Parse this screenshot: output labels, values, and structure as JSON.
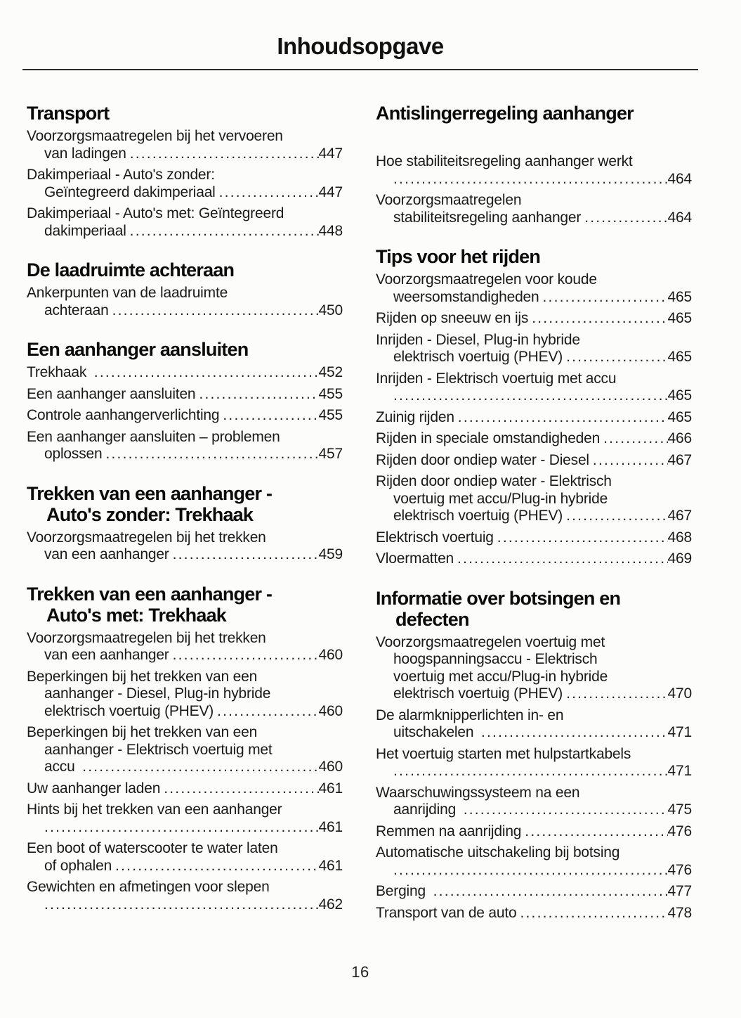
{
  "page": {
    "title": "Inhoudsopgave",
    "page_number": "16"
  },
  "colors": {
    "background": "#fcfcfb",
    "text": "#1a1a1a",
    "heading": "#0b0b0b"
  },
  "columns": [
    {
      "side": "left",
      "sections": [
        {
          "heading_lines": [
            "Transport"
          ],
          "entries": [
            {
              "lines": [
                "Voorzorgsmaatregelen bij het vervoeren",
                "van ladingen"
              ],
              "page": "447"
            },
            {
              "lines": [
                "Dakimperiaal - Auto's zonder:",
                "Geïntegreerd dakimperiaal"
              ],
              "page": "447"
            },
            {
              "lines": [
                "Dakimperiaal - Auto's met: Geïntegreerd",
                "dakimperiaal"
              ],
              "page": "448"
            }
          ]
        },
        {
          "heading_lines": [
            "De laadruimte achteraan"
          ],
          "entries": [
            {
              "lines": [
                "Ankerpunten van de laadruimte",
                "achteraan"
              ],
              "page": "450"
            }
          ]
        },
        {
          "heading_lines": [
            "Een aanhanger aansluiten"
          ],
          "entries": [
            {
              "lines": [
                "Trekhaak "
              ],
              "page": "452"
            },
            {
              "lines": [
                "Een aanhanger aansluiten"
              ],
              "page": "455"
            },
            {
              "lines": [
                "Controle aanhangerverlichting"
              ],
              "page": "455"
            },
            {
              "lines": [
                "Een aanhanger aansluiten – problemen",
                "oplossen"
              ],
              "page": "457"
            }
          ]
        },
        {
          "heading_lines": [
            "Trekken van een aanhanger -",
            "Auto's zonder: Trekhaak"
          ],
          "entries": [
            {
              "lines": [
                "Voorzorgsmaatregelen bij het trekken",
                "van een aanhanger"
              ],
              "page": "459"
            }
          ]
        },
        {
          "heading_lines": [
            "Trekken van een aanhanger -",
            "Auto's met: Trekhaak"
          ],
          "entries": [
            {
              "lines": [
                "Voorzorgsmaatregelen bij het trekken",
                "van een aanhanger"
              ],
              "page": "460"
            },
            {
              "lines": [
                "Beperkingen bij het trekken van een",
                "aanhanger - Diesel, Plug-in hybride",
                "elektrisch voertuig (PHEV)"
              ],
              "page": "460"
            },
            {
              "lines": [
                "Beperkingen bij het trekken van een",
                "aanhanger - Elektrisch voertuig met",
                "accu "
              ],
              "page": "460"
            },
            {
              "lines": [
                "Uw aanhanger laden"
              ],
              "page": "461"
            },
            {
              "lines": [
                "Hints bij het trekken van een aanhanger",
                ""
              ],
              "page": "461"
            },
            {
              "lines": [
                "Een boot of waterscooter te water laten",
                "of ophalen"
              ],
              "page": "461"
            },
            {
              "lines": [
                "Gewichten en afmetingen voor slepen",
                ""
              ],
              "page": "462"
            }
          ]
        }
      ]
    },
    {
      "side": "right",
      "sections": [
        {
          "heading_lines": [
            "Antislingerregeling aanhanger"
          ],
          "extra_gap_after_heading": true,
          "entries": [
            {
              "lines": [
                "Hoe stabiliteitsregeling aanhanger werkt",
                ""
              ],
              "page": "464"
            },
            {
              "lines": [
                "Voorzorgsmaatregelen",
                "stabiliteitsregeling aanhanger"
              ],
              "page": "464"
            }
          ]
        },
        {
          "heading_lines": [
            "Tips voor het rijden"
          ],
          "entries": [
            {
              "lines": [
                "Voorzorgsmaatregelen voor koude",
                "weersomstandigheden"
              ],
              "page": "465"
            },
            {
              "lines": [
                "Rijden op sneeuw en ijs"
              ],
              "page": "465"
            },
            {
              "lines": [
                "Inrijden - Diesel, Plug-in hybride",
                "elektrisch voertuig (PHEV)"
              ],
              "page": "465"
            },
            {
              "lines": [
                "Inrijden - Elektrisch voertuig met accu",
                ""
              ],
              "page": "465"
            },
            {
              "lines": [
                "Zuinig rijden"
              ],
              "page": "465"
            },
            {
              "lines": [
                "Rijden in speciale omstandigheden"
              ],
              "page": "466"
            },
            {
              "lines": [
                "Rijden door ondiep water - Diesel"
              ],
              "page": "467"
            },
            {
              "lines": [
                "Rijden door ondiep water - Elektrisch",
                "voertuig met accu/Plug-in hybride",
                "elektrisch voertuig (PHEV)"
              ],
              "page": "467"
            },
            {
              "lines": [
                "Elektrisch voertuig"
              ],
              "page": "468"
            },
            {
              "lines": [
                "Vloermatten"
              ],
              "page": "469"
            }
          ]
        },
        {
          "heading_lines": [
            "Informatie over botsingen en",
            "defecten"
          ],
          "entries": [
            {
              "lines": [
                "Voorzorgsmaatregelen voertuig met",
                "hoogspanningsaccu - Elektrisch",
                "voertuig met accu/Plug-in hybride",
                "elektrisch voertuig (PHEV)"
              ],
              "page": "470"
            },
            {
              "lines": [
                "De alarmknipperlichten in- en",
                "uitschakelen "
              ],
              "page": "471"
            },
            {
              "lines": [
                "Het voertuig starten met hulpstartkabels",
                ""
              ],
              "page": "471"
            },
            {
              "lines": [
                "Waarschuwingssysteem na een",
                "aanrijding "
              ],
              "page": "475"
            },
            {
              "lines": [
                "Remmen na aanrijding"
              ],
              "page": "476"
            },
            {
              "lines": [
                "Automatische uitschakeling bij botsing",
                ""
              ],
              "page": "476"
            },
            {
              "lines": [
                "Berging "
              ],
              "page": "477"
            },
            {
              "lines": [
                "Transport van de auto"
              ],
              "page": "478"
            }
          ]
        }
      ]
    }
  ]
}
